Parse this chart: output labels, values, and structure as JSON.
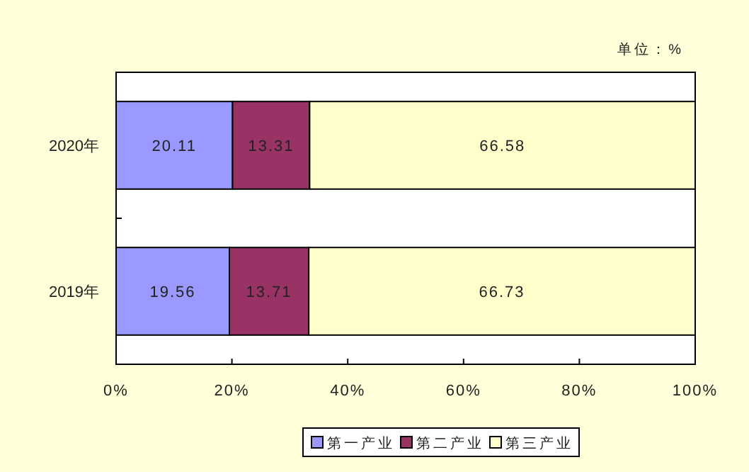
{
  "chart_data": {
    "type": "bar",
    "orientation": "horizontal",
    "stacked": true,
    "categories": [
      "2020年",
      "2019年"
    ],
    "series": [
      {
        "name": "第一产业",
        "color": "#9999ff",
        "values": [
          20.11,
          19.56
        ]
      },
      {
        "name": "第二产业",
        "color": "#993366",
        "values": [
          13.31,
          13.71
        ]
      },
      {
        "name": "第三产业",
        "color": "#ffffcc",
        "values": [
          66.58,
          66.73
        ]
      }
    ],
    "xlim": [
      0,
      100
    ],
    "xticks": [
      {
        "value": 0,
        "label": "0%"
      },
      {
        "value": 20,
        "label": "20%"
      },
      {
        "value": 40,
        "label": "40%"
      },
      {
        "value": 60,
        "label": "60%"
      },
      {
        "value": 80,
        "label": "80%"
      },
      {
        "value": 100,
        "label": "100%"
      }
    ],
    "data_labels": true,
    "legend": "bottom",
    "grid": false,
    "annotations": [
      "单位：%"
    ]
  }
}
